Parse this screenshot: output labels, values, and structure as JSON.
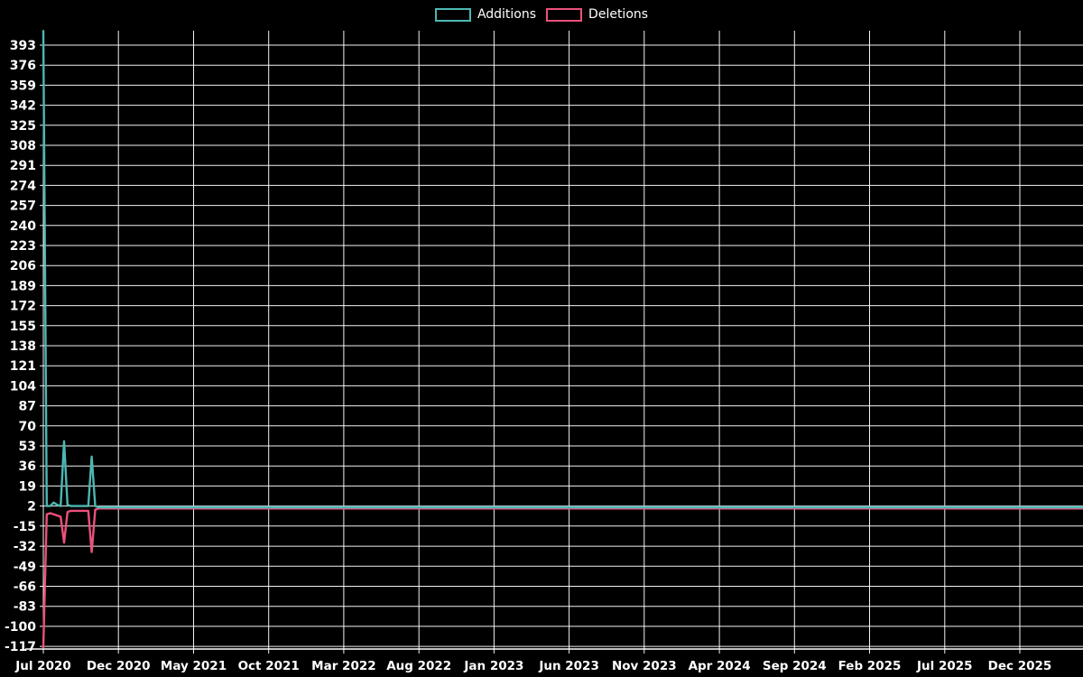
{
  "page": {
    "background": "#000000",
    "text_color": "#ffffff",
    "grid_color": "#ffffff"
  },
  "legend": {
    "position": "top-center",
    "items": [
      {
        "label": "Additions",
        "color": "#4cb8b4"
      },
      {
        "label": "Deletions",
        "color": "#ec517b"
      }
    ]
  },
  "chart_data": {
    "type": "line",
    "title": "",
    "xlabel": "",
    "ylabel": "",
    "grid": true,
    "legend_position": "top-center",
    "x": {
      "unit": "weeks",
      "tick_labels": [
        "Jul 2020",
        "Dec 2020",
        "May 2021",
        "Oct 2021",
        "Mar 2022",
        "Aug 2022",
        "Jan 2023",
        "Jun 2023",
        "Nov 2023",
        "Apr 2024",
        "Sep 2024",
        "Feb 2025",
        "Jul 2025",
        "Dec 2025"
      ]
    },
    "y": {
      "tick_labels": [
        393,
        376,
        359,
        342,
        325,
        308,
        291,
        274,
        257,
        240,
        223,
        206,
        189,
        172,
        155,
        138,
        121,
        104,
        87,
        70,
        53,
        36,
        19,
        2,
        -15,
        -32,
        -49,
        -66,
        -83,
        -100,
        -117
      ],
      "min": -119,
      "max": 405
    },
    "series": [
      {
        "name": "Additions",
        "color": "#4cb8b4",
        "points": [
          [
            0,
            405
          ],
          [
            1,
            2
          ],
          [
            2,
            2
          ],
          [
            3,
            5
          ],
          [
            4,
            3
          ],
          [
            5,
            2
          ],
          [
            6,
            57
          ],
          [
            7,
            3
          ],
          [
            8,
            2
          ],
          [
            9,
            2
          ],
          [
            10,
            2
          ],
          [
            11,
            2
          ],
          [
            12,
            2
          ],
          [
            13,
            2
          ],
          [
            14,
            44
          ],
          [
            15,
            2
          ],
          [
            16,
            1
          ],
          [
            301,
            1
          ]
        ]
      },
      {
        "name": "Deletions",
        "color": "#ec517b",
        "points": [
          [
            0,
            -118
          ],
          [
            1,
            -5
          ],
          [
            2,
            -4
          ],
          [
            3,
            -5
          ],
          [
            4,
            -6
          ],
          [
            5,
            -7
          ],
          [
            6,
            -29
          ],
          [
            7,
            -3
          ],
          [
            8,
            -2
          ],
          [
            9,
            -2
          ],
          [
            10,
            -2
          ],
          [
            11,
            -2
          ],
          [
            12,
            -2
          ],
          [
            13,
            -2
          ],
          [
            14,
            -37
          ],
          [
            15,
            -1
          ],
          [
            16,
            0
          ],
          [
            301,
            0
          ]
        ]
      }
    ]
  }
}
